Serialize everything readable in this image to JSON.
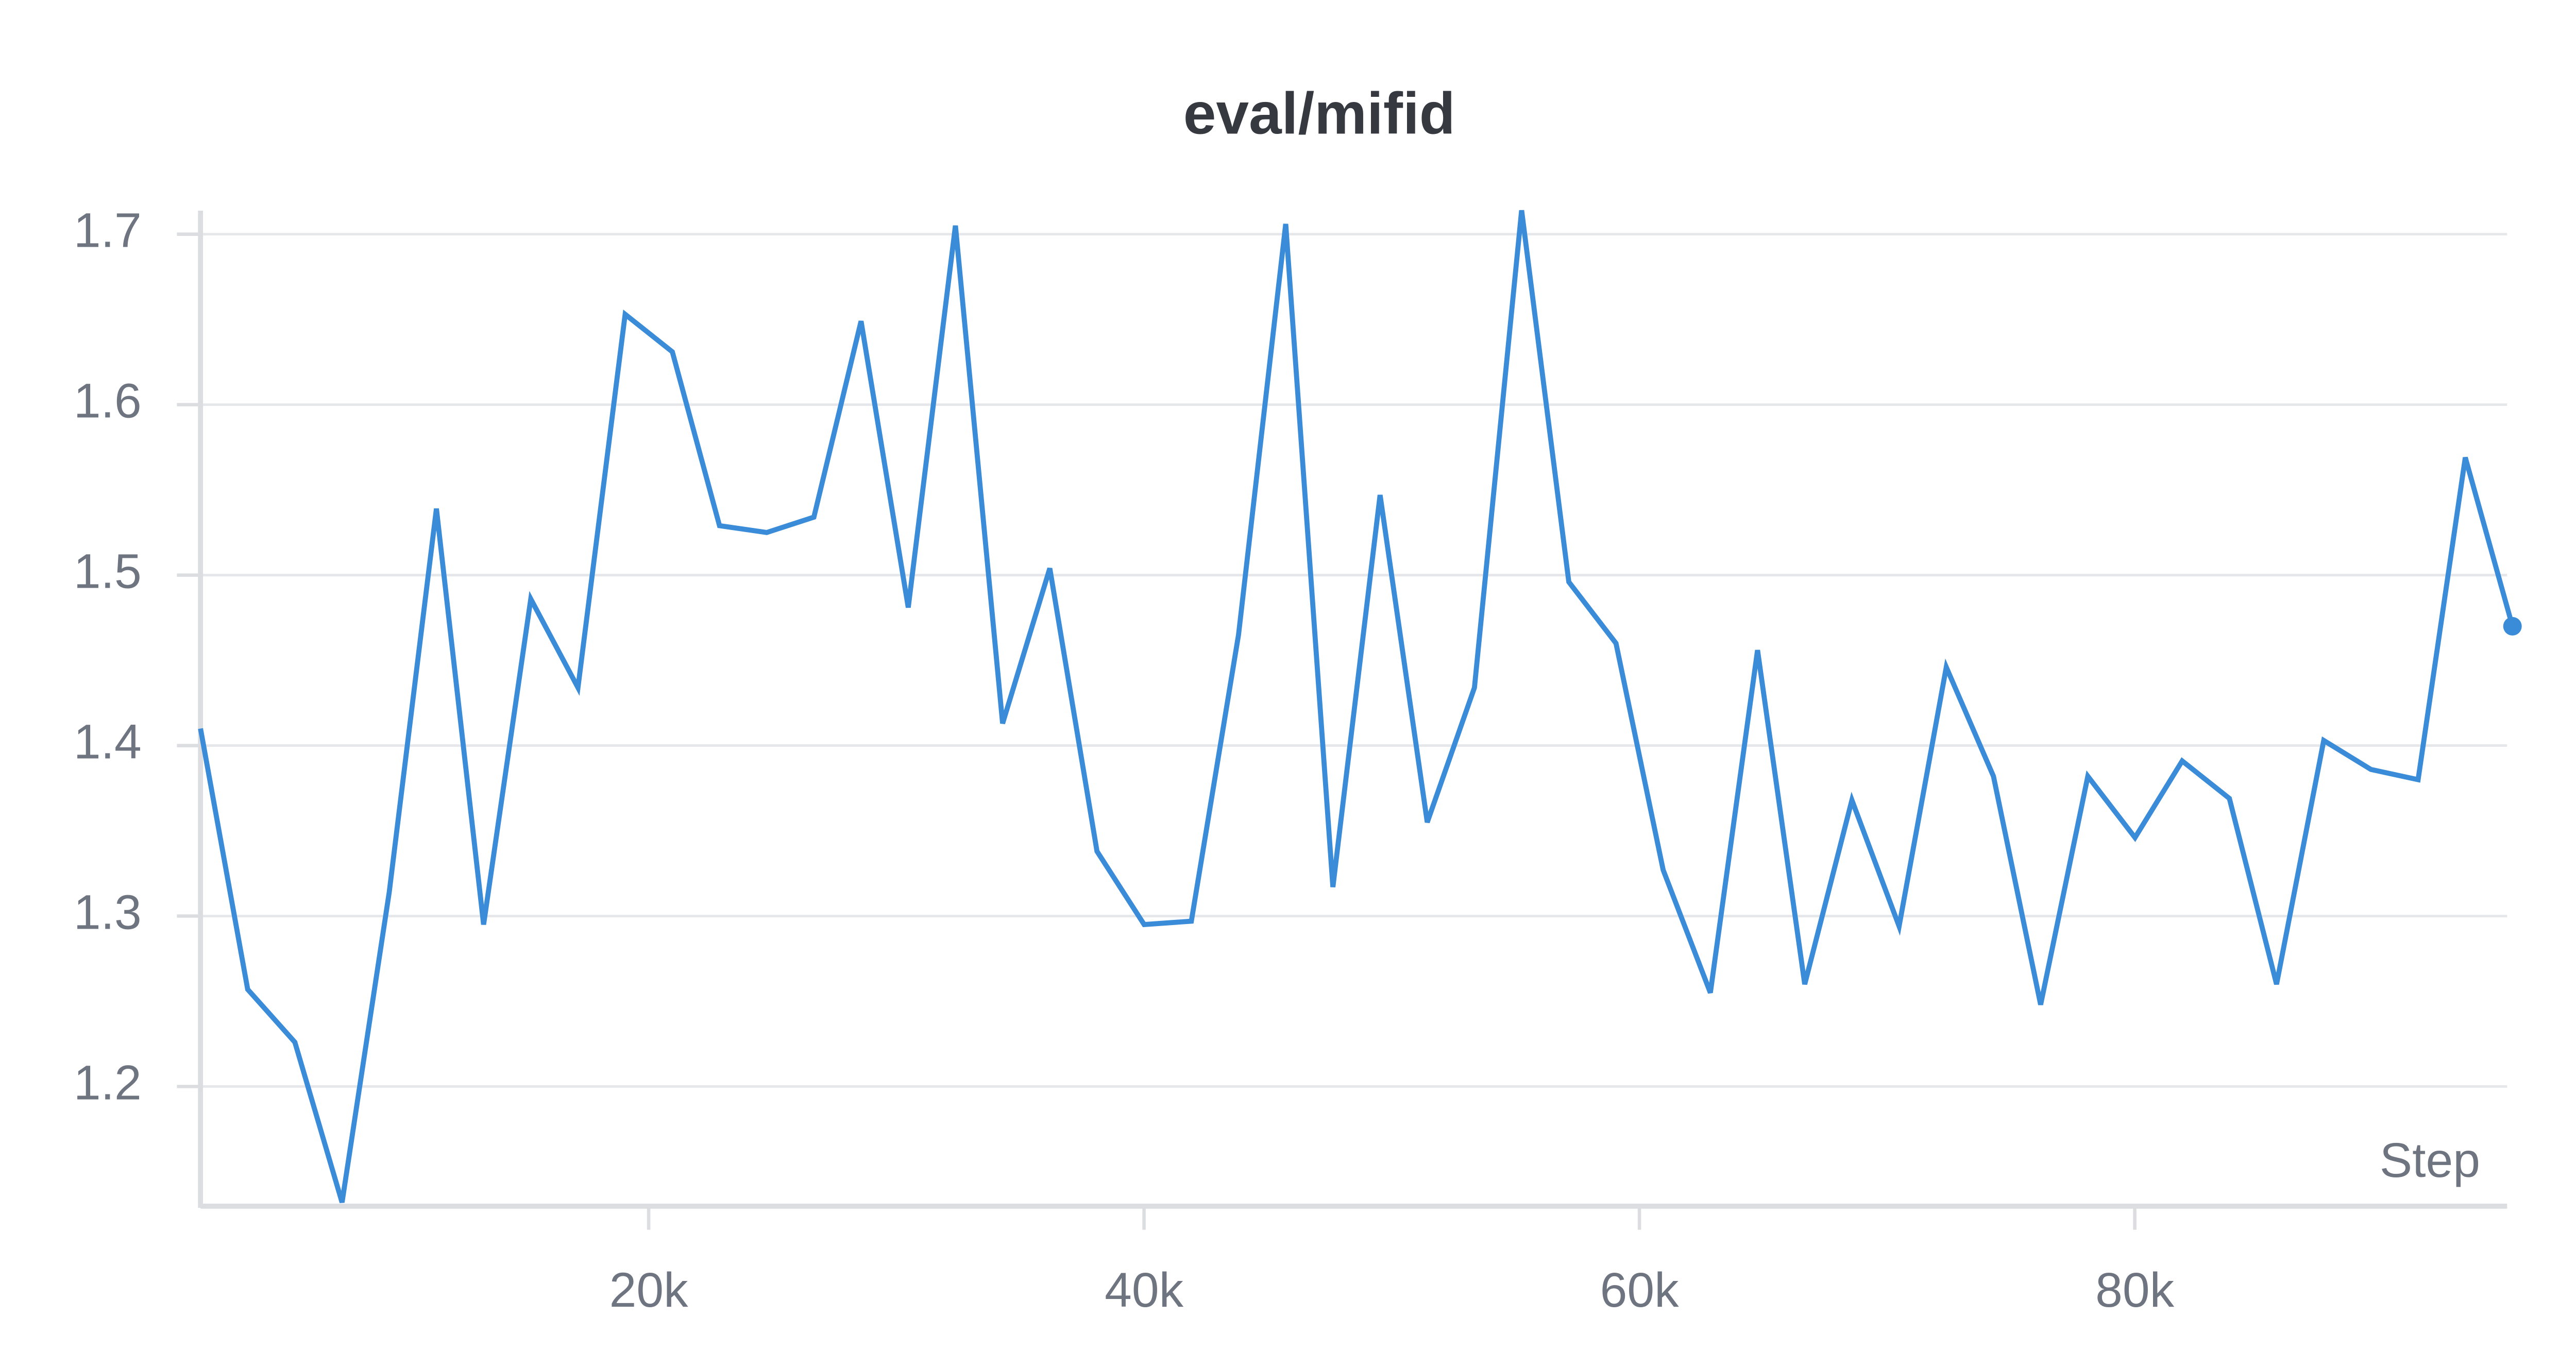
{
  "chart_data": {
    "type": "line",
    "title": "eval/mifid",
    "x_label": "Step",
    "x": [
      1905,
      3810,
      5715,
      7620,
      9525,
      11430,
      13335,
      15240,
      17145,
      19050,
      20955,
      22860,
      24765,
      26670,
      28575,
      30480,
      32385,
      34290,
      36195,
      38100,
      40005,
      41910,
      43815,
      45720,
      47625,
      49530,
      51435,
      53340,
      55245,
      57150,
      59055,
      60960,
      62865,
      64770,
      66675,
      68580,
      70485,
      72390,
      74295,
      76200,
      78105,
      80010,
      81915,
      83820,
      85725,
      87630,
      89535,
      91440,
      93345,
      95250
    ],
    "series": [
      {
        "name": "eval/mifid",
        "color": "#3a8bd8",
        "values": [
          1.41,
          1.257,
          1.226,
          1.132,
          1.314,
          1.539,
          1.295,
          1.486,
          1.434,
          1.653,
          1.631,
          1.529,
          1.525,
          1.534,
          1.649,
          1.481,
          1.705,
          1.413,
          1.504,
          1.338,
          1.295,
          1.297,
          1.465,
          1.706,
          1.317,
          1.547,
          1.355,
          1.434,
          1.714,
          1.496,
          1.46,
          1.327,
          1.255,
          1.456,
          1.26,
          1.368,
          1.294,
          1.446,
          1.382,
          1.248,
          1.382,
          1.346,
          1.391,
          1.369,
          1.26,
          1.403,
          1.386,
          1.38,
          1.569,
          1.47
        ]
      }
    ],
    "xlim": [
      1905,
      95034
    ],
    "ylim": [
      1.1298,
      1.7138
    ],
    "xticks": [
      {
        "value": 20000,
        "label": "20k"
      },
      {
        "value": 40000,
        "label": "40k"
      },
      {
        "value": 60000,
        "label": "60k"
      },
      {
        "value": 80000,
        "label": "80k"
      }
    ],
    "yticks": [
      1.2,
      1.3,
      1.4,
      1.5,
      1.6,
      1.7
    ],
    "grid": true,
    "end_marker": true
  }
}
